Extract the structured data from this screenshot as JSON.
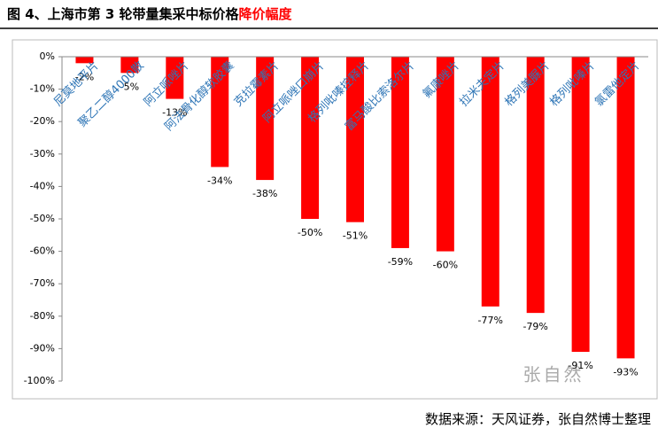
{
  "chart_data": {
    "type": "bar",
    "title": {
      "text": "图 4、上海市第 3 轮带量集采中标价格",
      "highlight": "降价幅度"
    },
    "categories": [
      "尼莫地平片",
      "聚乙二醇4000散",
      "阿立哌唑片",
      "阿法骨化醇软胶囊",
      "克拉霉素片",
      "阿立哌唑口崩片",
      "格列吡嗪控释片",
      "富马酸比索洛尔片",
      "氟康唑片",
      "拉米夫定片",
      "格列美脲片",
      "格列吡嗪片",
      "氯雷他定片"
    ],
    "values": [
      -2,
      -5,
      -13,
      -34,
      -38,
      -50,
      -51,
      -59,
      -60,
      -77,
      -79,
      -91,
      -93
    ],
    "value_labels": [
      "-2%",
      "-5%",
      "-13%",
      "-34%",
      "-38%",
      "-50%",
      "-51%",
      "-59%",
      "-60%",
      "-77%",
      "-79%",
      "-91%",
      "-93%"
    ],
    "color": "#ff0000",
    "ylim": [
      -100,
      0
    ],
    "yticks": [
      {
        "value": 0,
        "label": "0%"
      },
      {
        "value": -10,
        "label": "-10%"
      },
      {
        "value": -20,
        "label": "-20%"
      },
      {
        "value": -30,
        "label": "-30%"
      },
      {
        "value": -40,
        "label": "-40%"
      },
      {
        "value": -50,
        "label": "-50%"
      },
      {
        "value": -60,
        "label": "-60%"
      },
      {
        "value": -70,
        "label": "-70%"
      },
      {
        "value": -80,
        "label": "-80%"
      },
      {
        "value": -90,
        "label": "-90%"
      },
      {
        "value": -100,
        "label": "-100%"
      }
    ],
    "watermark": "张自然",
    "source": "数据来源：天风证券，张自然博士整理"
  }
}
